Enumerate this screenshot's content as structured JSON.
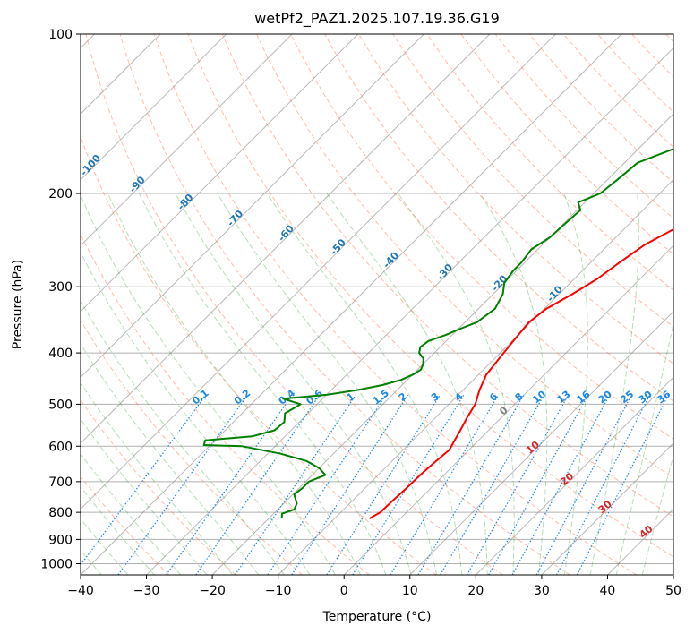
{
  "chart_data": {
    "type": "line",
    "title": "wetPf2_PAZ1.2025.107.19.36.G19",
    "xlabel": "Temperature (°C)",
    "ylabel": "Pressure (hPa)",
    "xlim": [
      -40,
      50
    ],
    "ylim": [
      1050,
      100
    ],
    "y_scale": "log",
    "grid": true,
    "x_ticks": [
      "−40",
      "−30",
      "−20",
      "−10",
      "0",
      "10",
      "20",
      "30",
      "40",
      "50"
    ],
    "x_tick_values": [
      -40,
      -30,
      -20,
      -10,
      0,
      10,
      20,
      30,
      40,
      50
    ],
    "y_ticks": [
      "100",
      "200",
      "300",
      "400",
      "500",
      "600",
      "700",
      "800",
      "900",
      "1000"
    ],
    "y_tick_values": [
      100,
      200,
      300,
      400,
      500,
      600,
      700,
      800,
      900,
      1000
    ],
    "mixing_ratio_labels": [
      "0.1",
      "0.2",
      "0.4",
      "0.6",
      "1",
      "1.5",
      "2",
      "3",
      "4",
      "6",
      "8",
      "10",
      "13",
      "16",
      "20",
      "25",
      "30",
      "36"
    ],
    "mixing_ratio_values": [
      0.1,
      0.2,
      0.4,
      0.6,
      1,
      1.5,
      2,
      3,
      4,
      6,
      8,
      10,
      13,
      16,
      20,
      25,
      30,
      36
    ],
    "dry_adiabat_labels": [
      "-100",
      "-90",
      "-80",
      "-70",
      "-60",
      "-50",
      "-40",
      "-30",
      "-20",
      "-10"
    ],
    "dry_adiabat_values": [
      -100,
      -90,
      -80,
      -70,
      -60,
      -50,
      -40,
      -30,
      -20,
      -10
    ],
    "moist_adiabat_labels": [
      "0",
      "10",
      "20",
      "30",
      "40"
    ],
    "moist_adiabat_values": [
      0,
      10,
      20,
      30,
      40
    ],
    "colors": {
      "temperature": "#ff0000",
      "dewpoint": "#008000",
      "dry_adiabat": "#ff6a3c",
      "dry_adiabat_label": "#1f77b4",
      "moist_adiabat": "#2ca02c",
      "moist_adiabat_label": "#d62728",
      "mixing_ratio": "#1e88e5",
      "isotherm": "#808080",
      "zero_label": "#808080"
    },
    "series": [
      {
        "key": "temperature",
        "pressure": [
          822,
          800,
          760,
          720,
          680,
          640,
          610,
          590,
          560,
          530,
          500,
          470,
          440,
          410,
          380,
          350,
          330,
          310,
          290,
          270,
          250,
          230,
          210,
          190,
          170,
          150,
          130,
          115,
          100
        ],
        "value": [
          -4.7,
          -4.0,
          -3.9,
          -3.7,
          -3.6,
          -3.3,
          -3.0,
          -3.5,
          -4.3,
          -5.2,
          -6.0,
          -7.5,
          -8.8,
          -9.3,
          -9.8,
          -10.3,
          -9.7,
          -8.0,
          -6.5,
          -5.6,
          -4.5,
          -2.0,
          1.0,
          5.5,
          10.5,
          15.0,
          19.5,
          25.0,
          33.0
        ]
      },
      {
        "key": "dewpoint",
        "pressure": [
          822,
          805,
          790,
          770,
          740,
          720,
          700,
          680,
          660,
          640,
          620,
          600,
          597,
          585,
          575,
          560,
          540,
          520,
          500,
          488,
          480,
          470,
          460,
          450,
          440,
          430,
          420,
          410,
          400,
          390,
          380,
          370,
          360,
          350,
          330,
          310,
          295,
          280,
          270,
          255,
          242,
          230,
          215,
          208,
          200,
          188,
          175,
          160,
          140,
          120,
          100
        ],
        "value": [
          -18.0,
          -18.7,
          -17.5,
          -18.0,
          -19.8,
          -19.5,
          -19.5,
          -18.0,
          -20.0,
          -23.0,
          -28.0,
          -35.0,
          -41.0,
          -41.5,
          -35.0,
          -32.5,
          -32.3,
          -33.5,
          -32.5,
          -36.0,
          -30.0,
          -26.0,
          -23.0,
          -21.0,
          -20.0,
          -19.5,
          -20.0,
          -20.8,
          -22.3,
          -23.0,
          -22.7,
          -21.0,
          -19.7,
          -18.2,
          -17.5,
          -18.5,
          -20.0,
          -20.5,
          -20.5,
          -21.0,
          -20.0,
          -19.8,
          -19.5,
          -21.0,
          -19.0,
          -18.5,
          -18.0,
          -13.0,
          -9.5,
          -5.0,
          1.0
        ]
      }
    ]
  }
}
